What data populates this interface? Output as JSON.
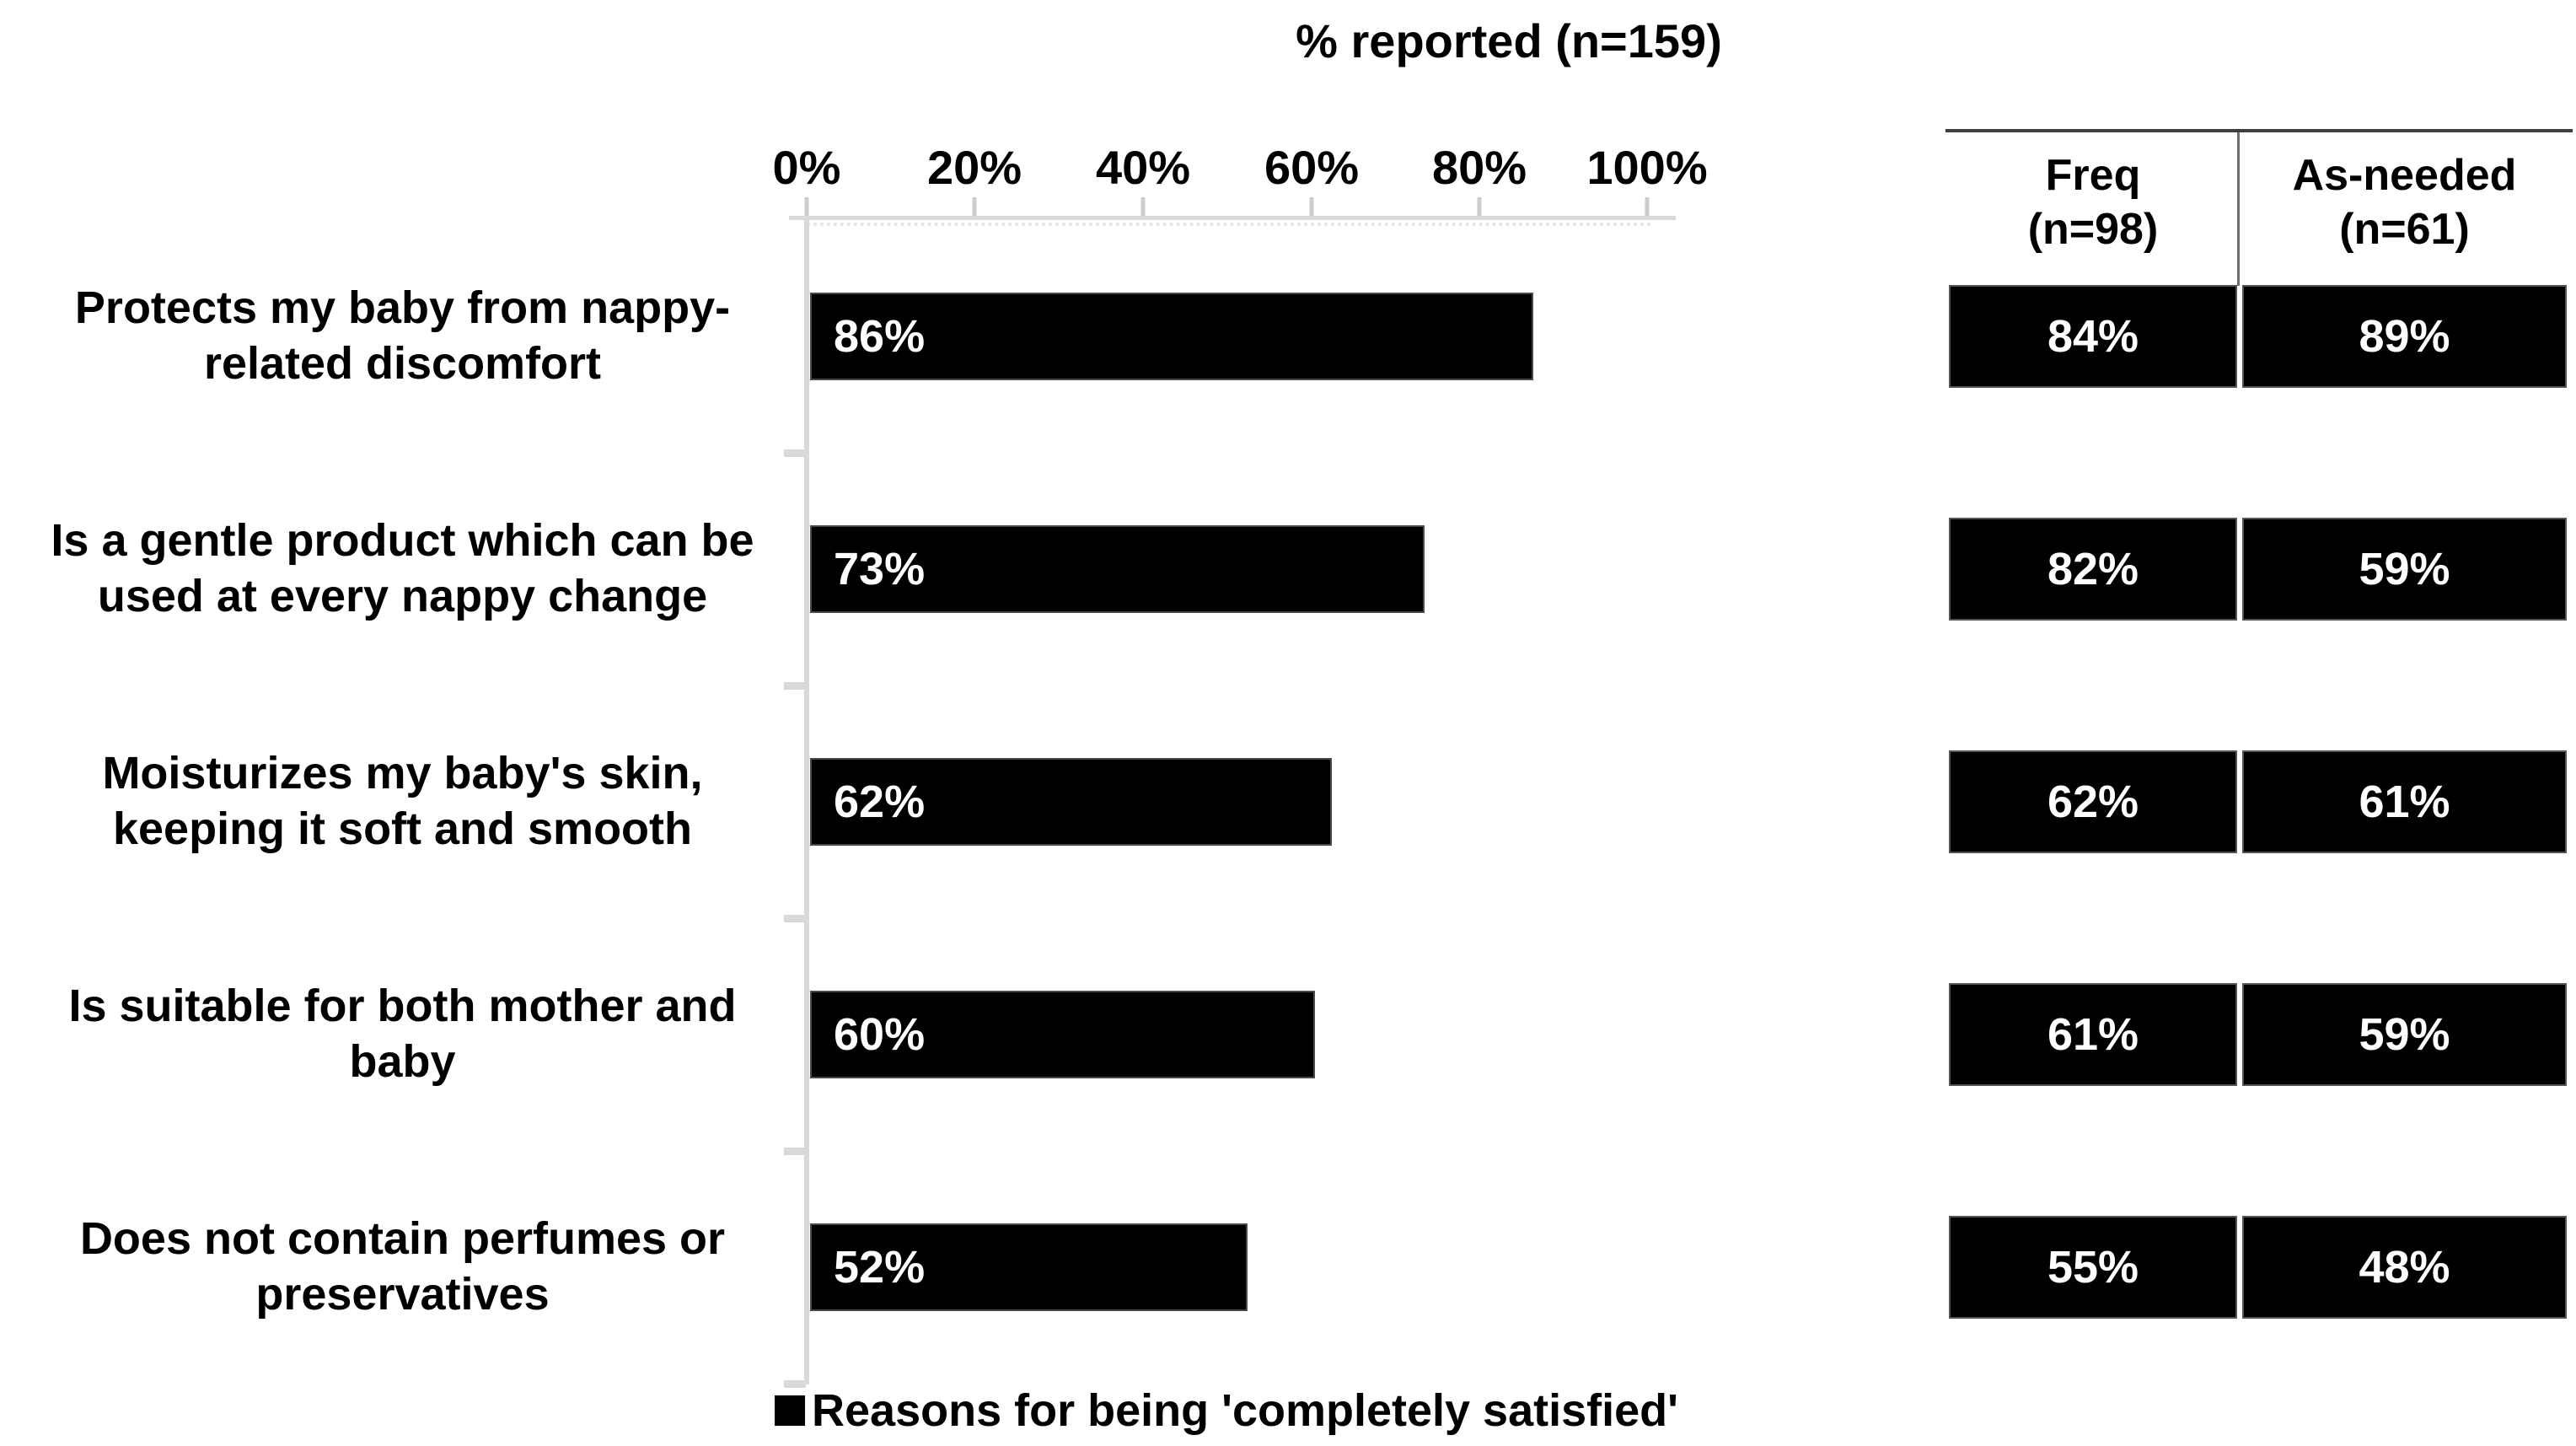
{
  "title": "% reported (n=159)",
  "axis": {
    "tick_labels": [
      "0%",
      "20%",
      "40%",
      "60%",
      "80%",
      "100%"
    ]
  },
  "table": {
    "header_freq_line1": "Freq",
    "header_freq_line2": "(n=98)",
    "header_asneeded_line1": "As-needed",
    "header_asneeded_line2": "(n=61)"
  },
  "legend": {
    "label": "Reasons for being 'completely satisfied'",
    "marker_color": "#000000"
  },
  "rows": [
    {
      "label": "Protects my baby from nappy-related discomfort",
      "bar_label": "86%",
      "value": 86,
      "freq": "84%",
      "as_needed": "89%"
    },
    {
      "label": "Is a gentle product which can be used at every nappy change",
      "bar_label": "73%",
      "value": 73,
      "freq": "82%",
      "as_needed": "59%"
    },
    {
      "label": "Moisturizes my baby's skin, keeping it soft and smooth",
      "bar_label": "62%",
      "value": 62,
      "freq": "62%",
      "as_needed": "61%"
    },
    {
      "label": "Is suitable for both mother and baby",
      "bar_label": "60%",
      "value": 60,
      "freq": "61%",
      "as_needed": "59%"
    },
    {
      "label": "Does not contain perfumes or preservatives",
      "bar_label": "52%",
      "value": 52,
      "freq": "55%",
      "as_needed": "48%"
    }
  ],
  "chart_data": {
    "type": "bar",
    "orientation": "horizontal",
    "title": "% reported (n=159)",
    "categories": [
      "Protects my baby from nappy-related discomfort",
      "Is a gentle product which can be used at every nappy change",
      "Moisturizes my baby's skin, keeping it soft and smooth",
      "Is suitable for both mother and baby",
      "Does not contain perfumes or preservatives"
    ],
    "series": [
      {
        "name": "Reasons for being 'completely satisfied' (n=159)",
        "values": [
          86,
          73,
          62,
          60,
          52
        ]
      },
      {
        "name": "Freq (n=98)",
        "values": [
          84,
          82,
          62,
          61,
          55
        ]
      },
      {
        "name": "As-needed (n=61)",
        "values": [
          89,
          59,
          61,
          59,
          48
        ]
      }
    ],
    "xlabel": "% reported (n=159)",
    "ylabel": "",
    "xlim": [
      0,
      100
    ],
    "xticks": [
      "0%",
      "20%",
      "40%",
      "60%",
      "80%",
      "100%"
    ],
    "grid": false,
    "bar_color": "#000000",
    "legend_position": "bottom",
    "legend_entries": [
      "Reasons for being 'completely satisfied'"
    ]
  }
}
